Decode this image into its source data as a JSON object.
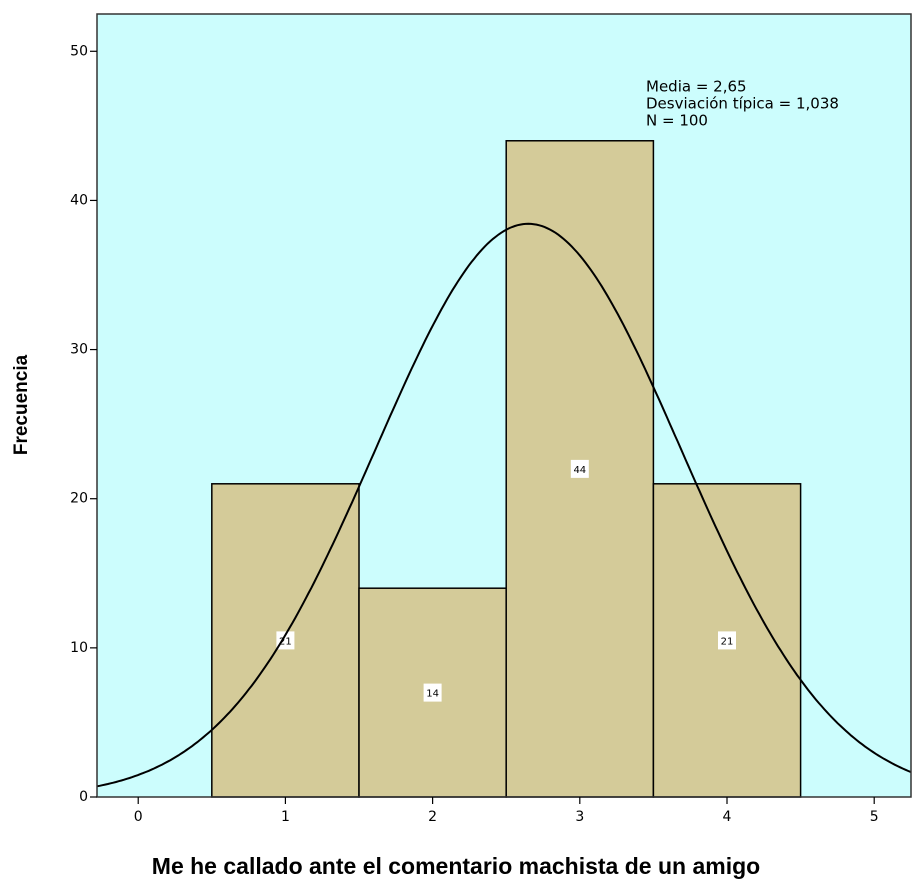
{
  "chart_data": {
    "type": "histogram",
    "x_label": "Me he callado ante el comentario machista de un amigo",
    "y_label": "Frecuencia",
    "bins": [
      0.5,
      1.5,
      2.5,
      3.5,
      4.5
    ],
    "values": [
      21,
      14,
      44,
      21
    ],
    "color": "#d4cb99",
    "stats_text": [
      "Media = 2,65",
      "Desviación típica = 1,038",
      "N = 100"
    ],
    "normal_curve": {
      "mean": 2.65,
      "sd": 1.038,
      "n": 100
    },
    "xlim": [
      -0.28,
      5.25
    ],
    "xticks": [
      0,
      1,
      2,
      3,
      4,
      5
    ],
    "ylim": [
      0,
      52.5
    ],
    "yticks": [
      0,
      10,
      20,
      30,
      40,
      50
    ]
  }
}
